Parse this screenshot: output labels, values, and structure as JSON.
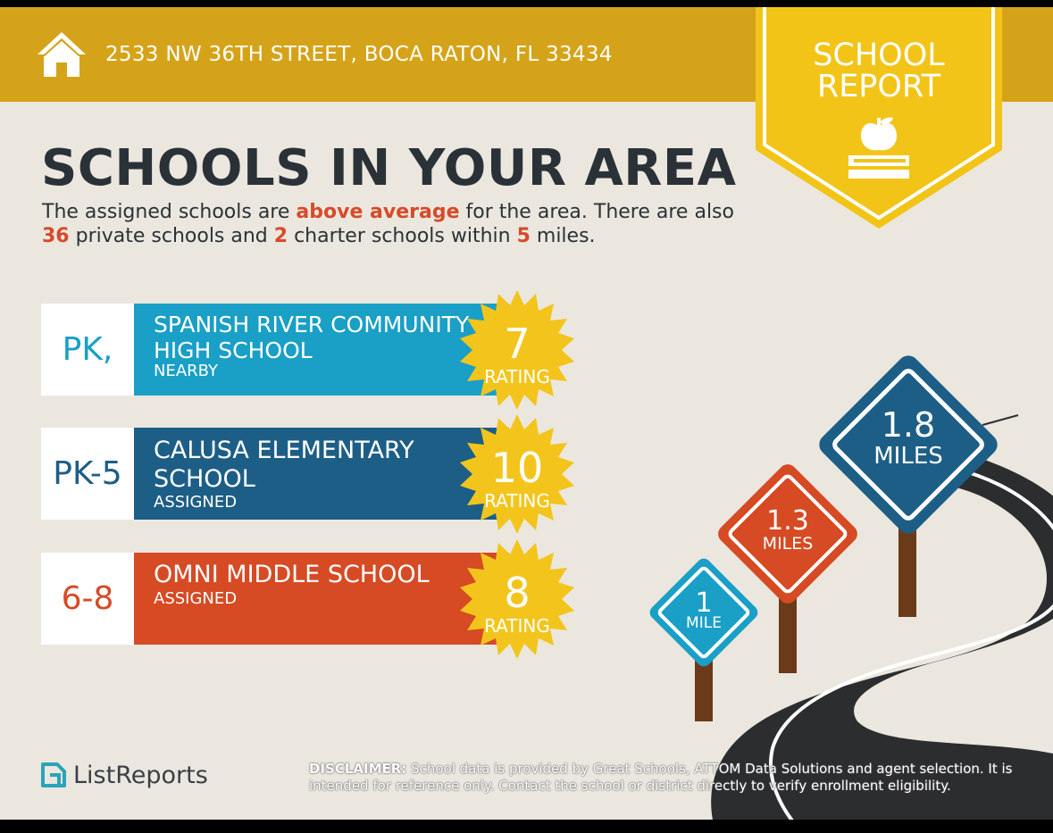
{
  "header": {
    "address": "2533 NW 36TH STREET, BOCA RATON, FL 33434",
    "badge_line1": "SCHOOL",
    "badge_line2": "REPORT",
    "home_icon": "house-icon",
    "badge_icon": "apple-on-books-icon"
  },
  "main": {
    "headline": "SCHOOLS IN YOUR AREA",
    "intro": {
      "t1": "The assigned schools are ",
      "h1": "above average",
      "t2": " for the area. There are also ",
      "h2": "36",
      "t3": " private schools and ",
      "h3": "2",
      "t4": " charter schools within ",
      "h4": "5",
      "t5": " miles."
    },
    "schools": [
      {
        "grade": "PK,",
        "name_line1": "SPANISH RIVER COMMUNITY",
        "name_line2": "HIGH SCHOOL",
        "status": "NEARBY",
        "rating": "7",
        "rating_label": "RATING",
        "color": "#1a9fc6",
        "grade_color": "#1a9fc6"
      },
      {
        "grade": "PK-5",
        "name_line1": "CALUSA ELEMENTARY",
        "name_line2": "SCHOOL",
        "status": "ASSIGNED",
        "rating": "10",
        "rating_label": "RATING",
        "color": "#1d5e86",
        "grade_color": "#1d5e86"
      },
      {
        "grade": "6-8",
        "name_line1": "OMNI MIDDLE SCHOOL",
        "name_line2": "",
        "status": "ASSIGNED",
        "rating": "8",
        "rating_label": "RATING",
        "color": "#d64a24",
        "grade_color": "#d64a24"
      }
    ],
    "distance_signs": [
      {
        "value": "1",
        "unit": "MILE",
        "color": "#1a9fc6"
      },
      {
        "value": "1.3",
        "unit": "MILES",
        "color": "#d64a24"
      },
      {
        "value": "1.8",
        "unit": "MILES",
        "color": "#1d5e86"
      }
    ]
  },
  "footer": {
    "logo_text": "ListReports",
    "logo_icon": "listreports-logo-icon",
    "disclaimer_label": "DISCLAIMER:",
    "disclaimer_text": " School data is provided by Great Schools, ATTOM Data Solutions and agent selection. It is intended for reference only. Contact the school or district directly to verify enrollment eligibility."
  },
  "colors": {
    "header_gold": "#d5a31a",
    "badge_yellow": "#f2c417",
    "background": "#ebe7df",
    "highlight": "#d74a2a",
    "seal_yellow": "#f3c51c"
  }
}
